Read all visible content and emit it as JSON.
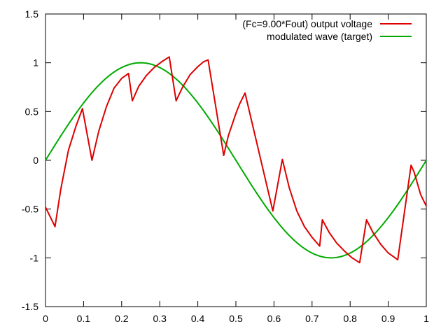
{
  "chart_data": {
    "type": "line",
    "xlim": [
      0,
      1
    ],
    "ylim": [
      -1.5,
      1.5
    ],
    "grid": false,
    "legend_position": "top-right",
    "x_ticks": [
      "0",
      "0.1",
      "0.2",
      "0.3",
      "0.4",
      "0.5",
      "0.6",
      "0.7",
      "0.8",
      "0.9",
      "1"
    ],
    "x_tick_values": [
      0,
      0.1,
      0.2,
      0.3,
      0.4,
      0.5,
      0.6,
      0.7,
      0.8,
      0.9,
      1
    ],
    "y_ticks": [
      "1.5",
      "1",
      "0.5",
      "0",
      "-0.5",
      "-1",
      "-1.5"
    ],
    "y_tick_values": [
      1.5,
      1,
      0.5,
      0,
      -0.5,
      -1,
      -1.5
    ],
    "series": [
      {
        "name": "(Fc=9.00*Fout) output voltage",
        "color": "#dd0000",
        "x": [
          0,
          0.025,
          0.04,
          0.06,
          0.08,
          0.097,
          0.122,
          0.14,
          0.16,
          0.18,
          0.2,
          0.218,
          0.228,
          0.245,
          0.265,
          0.285,
          0.305,
          0.325,
          0.343,
          0.36,
          0.38,
          0.4,
          0.415,
          0.427,
          0.468,
          0.48,
          0.5,
          0.51,
          0.524,
          0.597,
          0.622,
          0.64,
          0.66,
          0.68,
          0.7,
          0.72,
          0.727,
          0.745,
          0.765,
          0.785,
          0.805,
          0.825,
          0.843,
          0.86,
          0.88,
          0.9,
          0.925,
          0.96,
          0.968,
          0.985,
          1.0
        ],
        "y": [
          -0.48,
          -0.68,
          -0.3,
          0.1,
          0.35,
          0.53,
          0.0,
          0.3,
          0.55,
          0.74,
          0.84,
          0.89,
          0.61,
          0.76,
          0.87,
          0.95,
          1.01,
          1.06,
          0.61,
          0.75,
          0.88,
          0.96,
          1.01,
          1.03,
          0.05,
          0.25,
          0.48,
          0.58,
          0.69,
          -0.52,
          0.01,
          -0.28,
          -0.52,
          -0.68,
          -0.79,
          -0.88,
          -0.61,
          -0.74,
          -0.85,
          -0.93,
          -1.0,
          -1.05,
          -0.61,
          -0.74,
          -0.86,
          -0.95,
          -1.02,
          -0.05,
          -0.12,
          -0.35,
          -0.47
        ]
      },
      {
        "name": "modulated wave (target)",
        "color": "#00aa00",
        "function": "sin(2*pi*x)",
        "amplitude": 1,
        "period": 1
      }
    ]
  }
}
